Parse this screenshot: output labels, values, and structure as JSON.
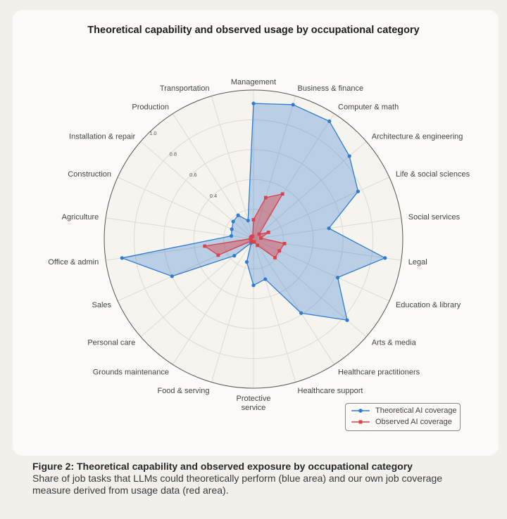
{
  "chart_data": {
    "type": "radar",
    "title": "Theoretical capability and observed usage by occupational category",
    "categories": [
      "Management",
      "Business & finance",
      "Computer & math",
      "Architecture & engineering",
      "Life & social sciences",
      "Social services",
      "Legal",
      "Education & library",
      "Arts & media",
      "Healthcare practitioners",
      "Healthcare support",
      "Protective service",
      "Food & serving",
      "Grounds maintenance",
      "Personal care",
      "Sales",
      "Office & admin",
      "Agriculture",
      "Construction",
      "Installation & repair",
      "Production",
      "Transportation"
    ],
    "radial_ticks": [
      "0.4",
      "0.6",
      "0.8",
      "1.0"
    ],
    "rlim": [
      0,
      1.0
    ],
    "grid": true,
    "legend_position": "bottom-right",
    "series": [
      {
        "name": "Theoretical AI coverage",
        "color": "#2f7bd0",
        "marker": "circle",
        "values": [
          0.91,
          0.94,
          0.94,
          0.85,
          0.77,
          0.51,
          0.89,
          0.62,
          0.83,
          0.59,
          0.28,
          0.31,
          0.16,
          0.03,
          0.17,
          0.6,
          0.89,
          0.15,
          0.16,
          0.18,
          0.19,
          0.13
        ]
      },
      {
        "name": "Observed AI coverage",
        "color": "#d9424a",
        "marker": "square",
        "values": [
          0.13,
          0.29,
          0.36,
          0.05,
          0.11,
          0.05,
          0.21,
          0.19,
          0.19,
          0.05,
          0.02,
          0.02,
          0.02,
          0.02,
          0.02,
          0.26,
          0.33,
          0.02,
          0.02,
          0.02,
          0.02,
          0.02
        ]
      }
    ]
  },
  "caption": {
    "title": "Figure 2: Theoretical capability and observed exposure by occupational category",
    "text": "Share of job tasks that LLMs could theoretically perform (blue area) and our own job coverage measure derived from usage data (red area)."
  }
}
